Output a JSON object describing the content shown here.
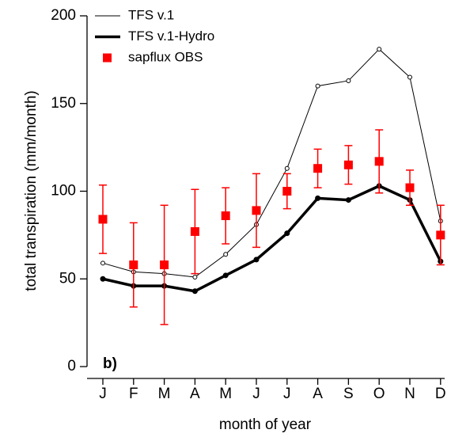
{
  "chart_data": {
    "type": "line",
    "ylabel": "total transpiration (mm/month)",
    "xlabel": "month of year",
    "annotation": "b)",
    "categories": [
      "J",
      "F",
      "M",
      "A",
      "M",
      "J",
      "J",
      "A",
      "S",
      "O",
      "N",
      "D"
    ],
    "ylim": [
      0,
      200
    ],
    "yticks": [
      0,
      50,
      100,
      150,
      200
    ],
    "grid": false,
    "legend": "top-left",
    "series": [
      {
        "name": "TFS v.1",
        "color": "#000000",
        "style": "thin-open-circles",
        "values": [
          59,
          54,
          53,
          51,
          64,
          81,
          113,
          160,
          163,
          181,
          165,
          83
        ]
      },
      {
        "name": "TFS v.1-Hydro",
        "color": "#000000",
        "style": "thick-filled-circles",
        "values": [
          50,
          46,
          46,
          43,
          52,
          61,
          76,
          96,
          95,
          103,
          95,
          60
        ]
      },
      {
        "name": "sapflux OBS",
        "color": "#ff0000",
        "style": "squares-errorbars",
        "values": [
          84,
          58,
          58,
          77,
          86,
          89,
          100,
          113,
          115,
          117,
          102,
          75
        ],
        "errors": [
          19.5,
          24,
          34,
          24,
          16,
          21,
          10,
          11,
          11,
          18,
          10,
          17
        ]
      }
    ]
  }
}
